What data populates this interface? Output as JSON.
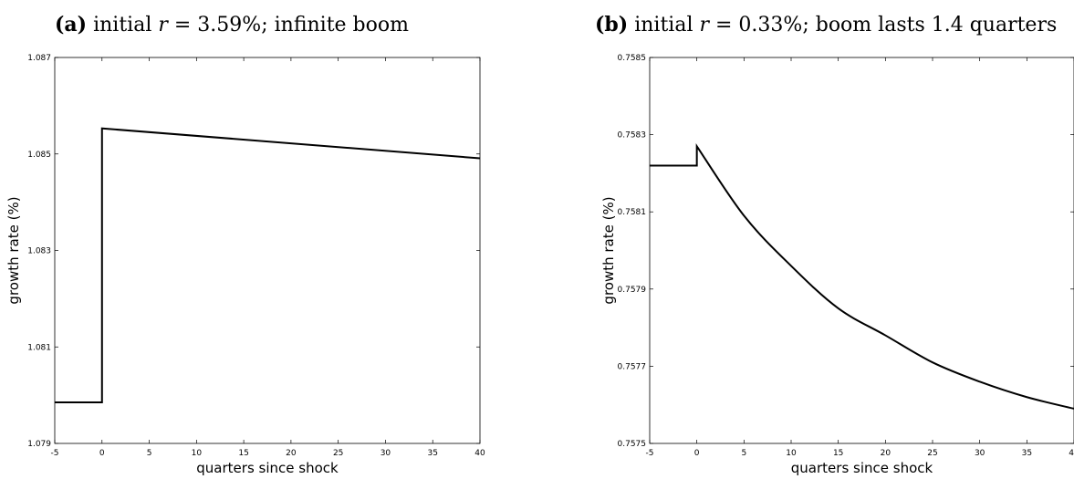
{
  "chart_data": [
    {
      "type": "line",
      "panel_label": "(a)",
      "title_prefix": "initial",
      "title_var": "r",
      "title_eq": " = 3.59%",
      "title_suffix": "; infinite boom",
      "xlabel": "quarters since shock",
      "ylabel": "growth rate (%)",
      "xlim": [
        -5,
        40
      ],
      "ylim": [
        1.079,
        1.087
      ],
      "xticks": [
        -5,
        0,
        5,
        10,
        15,
        20,
        25,
        30,
        35,
        40
      ],
      "yticks": [
        "1.079",
        "1.081",
        "1.083",
        "1.085",
        "1.087"
      ],
      "series": [
        {
          "x": [
            -5,
            0,
            0,
            40
          ],
          "y": [
            1.07985,
            1.07985,
            1.08553,
            1.08491
          ]
        }
      ]
    },
    {
      "type": "line",
      "panel_label": "(b)",
      "title_prefix": "initial",
      "title_var": "r",
      "title_eq": " = 0.33%",
      "title_suffix": "; boom lasts 1.4 quarters",
      "xlabel": "quarters since shock",
      "ylabel": "growth rate (%)",
      "xlim": [
        -5,
        40
      ],
      "ylim": [
        0.7575,
        0.7585
      ],
      "xticks": [
        -5,
        0,
        5,
        10,
        15,
        20,
        25,
        30,
        35,
        40
      ],
      "yticks": [
        "0.7575",
        "0.7577",
        "0.7579",
        "0.7581",
        "0.7583",
        "0.7585"
      ],
      "series": [
        {
          "x": [
            -5,
            0,
            0,
            5,
            10,
            15,
            20,
            25,
            30,
            35,
            40
          ],
          "y": [
            0.75822,
            0.75822,
            0.75827,
            0.75809,
            0.75796,
            0.75785,
            0.75778,
            0.75771,
            0.75766,
            0.75762,
            0.75759
          ]
        }
      ]
    }
  ]
}
